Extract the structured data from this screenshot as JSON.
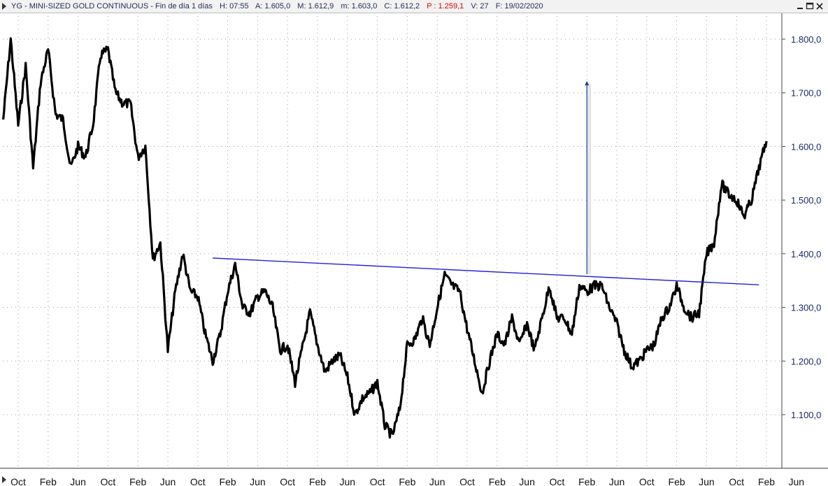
{
  "window": {
    "symbol": "YG",
    "name": "MINI-SIZED GOLD CONTINUOUS",
    "period": "Fin de día 1 días",
    "h_label": "H:",
    "h_value": "07:55",
    "a_label": "A:",
    "a_value": "1.605,0",
    "m_label": "M:",
    "m_value": "1.612,9",
    "mn_label": "m:",
    "mn_value": "1.603,0",
    "c_label": "C:",
    "c_value": "1.612,2",
    "p_label": "P :",
    "p_value": "1.259,1",
    "v_label": "V:",
    "v_value": "27",
    "f_label": "F:",
    "f_value": "19/02/2020",
    "controls": [
      "minimize",
      "maximize",
      "close"
    ]
  },
  "chart_data": {
    "type": "line",
    "ylim": [
      1010,
      1840
    ],
    "y_ticks": [
      1100,
      1200,
      1300,
      1400,
      1500,
      1600,
      1700,
      1800
    ],
    "y_tick_labels": [
      "1.100,0",
      "1.200,0",
      "1.300,0",
      "1.400,0",
      "1.500,0",
      "1.600,0",
      "1.700,0",
      "1.800,0"
    ],
    "x_tick_labels": [
      "Oct",
      "Feb",
      "Jun",
      "Oct",
      "Feb",
      "Jun",
      "Oct",
      "Feb",
      "Jun",
      "Oct",
      "Feb",
      "Jun",
      "Oct",
      "Feb",
      "Jun",
      "Oct",
      "Feb",
      "Jun",
      "Oct",
      "Feb",
      "Jun",
      "Oct",
      "Feb",
      "Jun",
      "Oct",
      "Feb",
      "Jun"
    ],
    "x_tick_dates": [
      "2011-10",
      "2012-02",
      "2012-06",
      "2012-10",
      "2013-02",
      "2013-06",
      "2013-10",
      "2014-02",
      "2014-06",
      "2014-10",
      "2015-02",
      "2015-06",
      "2015-10",
      "2016-02",
      "2016-06",
      "2016-10",
      "2017-02",
      "2017-06",
      "2017-10",
      "2018-02",
      "2018-06",
      "2018-10",
      "2019-02",
      "2019-06",
      "2019-10",
      "2020-02",
      "2020-06"
    ],
    "grid": true,
    "series": [
      {
        "color": "#000000",
        "points": [
          [
            "2011-08",
            1650
          ],
          [
            "2011-09",
            1800
          ],
          [
            "2011-10",
            1640
          ],
          [
            "2011-11",
            1750
          ],
          [
            "2011-12",
            1560
          ],
          [
            "2012-01",
            1720
          ],
          [
            "2012-02",
            1780
          ],
          [
            "2012-03",
            1660
          ],
          [
            "2012-04",
            1650
          ],
          [
            "2012-05",
            1560
          ],
          [
            "2012-06",
            1600
          ],
          [
            "2012-07",
            1580
          ],
          [
            "2012-08",
            1640
          ],
          [
            "2012-09",
            1770
          ],
          [
            "2012-10",
            1780
          ],
          [
            "2012-11",
            1700
          ],
          [
            "2012-12",
            1680
          ],
          [
            "2013-01",
            1680
          ],
          [
            "2013-02",
            1580
          ],
          [
            "2013-03",
            1600
          ],
          [
            "2013-04",
            1390
          ],
          [
            "2013-05",
            1420
          ],
          [
            "2013-06",
            1220
          ],
          [
            "2013-07",
            1330
          ],
          [
            "2013-08",
            1400
          ],
          [
            "2013-09",
            1330
          ],
          [
            "2013-10",
            1320
          ],
          [
            "2013-11",
            1250
          ],
          [
            "2013-12",
            1200
          ],
          [
            "2014-01",
            1250
          ],
          [
            "2014-02",
            1330
          ],
          [
            "2014-03",
            1380
          ],
          [
            "2014-04",
            1300
          ],
          [
            "2014-05",
            1290
          ],
          [
            "2014-06",
            1320
          ],
          [
            "2014-07",
            1330
          ],
          [
            "2014-08",
            1300
          ],
          [
            "2014-09",
            1220
          ],
          [
            "2014-10",
            1230
          ],
          [
            "2014-11",
            1160
          ],
          [
            "2015-01",
            1290
          ],
          [
            "2015-02",
            1230
          ],
          [
            "2015-03",
            1180
          ],
          [
            "2015-04",
            1200
          ],
          [
            "2015-05",
            1210
          ],
          [
            "2015-06",
            1170
          ],
          [
            "2015-07",
            1100
          ],
          [
            "2015-08",
            1130
          ],
          [
            "2015-09",
            1140
          ],
          [
            "2015-10",
            1160
          ],
          [
            "2015-11",
            1080
          ],
          [
            "2015-12",
            1060
          ],
          [
            "2016-01",
            1110
          ],
          [
            "2016-02",
            1230
          ],
          [
            "2016-03",
            1240
          ],
          [
            "2016-04",
            1280
          ],
          [
            "2016-05",
            1230
          ],
          [
            "2016-06",
            1300
          ],
          [
            "2016-07",
            1360
          ],
          [
            "2016-08",
            1340
          ],
          [
            "2016-09",
            1330
          ],
          [
            "2016-10",
            1260
          ],
          [
            "2016-11",
            1200
          ],
          [
            "2016-12",
            1140
          ],
          [
            "2017-01",
            1200
          ],
          [
            "2017-02",
            1250
          ],
          [
            "2017-03",
            1230
          ],
          [
            "2017-04",
            1280
          ],
          [
            "2017-05",
            1230
          ],
          [
            "2017-06",
            1270
          ],
          [
            "2017-07",
            1220
          ],
          [
            "2017-08",
            1280
          ],
          [
            "2017-09",
            1340
          ],
          [
            "2017-10",
            1280
          ],
          [
            "2017-11",
            1280
          ],
          [
            "2017-12",
            1250
          ],
          [
            "2018-01",
            1340
          ],
          [
            "2018-02",
            1330
          ],
          [
            "2018-03",
            1340
          ],
          [
            "2018-04",
            1340
          ],
          [
            "2018-05",
            1300
          ],
          [
            "2018-06",
            1270
          ],
          [
            "2018-07",
            1220
          ],
          [
            "2018-08",
            1190
          ],
          [
            "2018-09",
            1200
          ],
          [
            "2018-10",
            1220
          ],
          [
            "2018-11",
            1230
          ],
          [
            "2018-12",
            1280
          ],
          [
            "2019-01",
            1300
          ],
          [
            "2019-02",
            1340
          ],
          [
            "2019-03",
            1300
          ],
          [
            "2019-04",
            1280
          ],
          [
            "2019-05",
            1290
          ],
          [
            "2019-06",
            1400
          ],
          [
            "2019-07",
            1420
          ],
          [
            "2019-08",
            1530
          ],
          [
            "2019-09",
            1510
          ],
          [
            "2019-10",
            1500
          ],
          [
            "2019-11",
            1470
          ],
          [
            "2019-12",
            1500
          ],
          [
            "2020-01",
            1560
          ],
          [
            "2020-02",
            1610
          ]
        ]
      }
    ],
    "annotations": [
      {
        "type": "trendline",
        "color": "#2222dd",
        "from": [
          "2013-12",
          1392
        ],
        "to": [
          "2020-01",
          1342
        ]
      },
      {
        "type": "arrow",
        "color": "#1a3e8c",
        "from": [
          "2018-02",
          1362
        ],
        "to": [
          "2018-02",
          1722
        ]
      }
    ]
  }
}
